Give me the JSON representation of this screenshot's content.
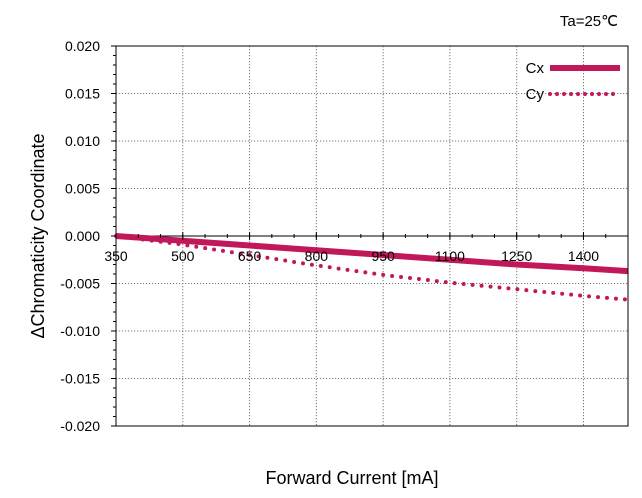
{
  "chart_data": {
    "type": "line",
    "title": "",
    "annotation": "Ta=25℃",
    "xlabel": "Forward Current [mA]",
    "ylabel": "ΔChromaticity Coordinate",
    "xlim": [
      350,
      1500
    ],
    "ylim": [
      -0.02,
      0.02
    ],
    "x_ticks": [
      350,
      500,
      650,
      800,
      950,
      1100,
      1250,
      1400
    ],
    "x_tick_labels": [
      "350",
      "500",
      "650",
      "800",
      "950",
      "1100",
      "1250",
      "1400"
    ],
    "y_ticks": [
      0.02,
      0.015,
      0.01,
      0.005,
      0.0,
      -0.005,
      -0.01,
      -0.015,
      -0.02
    ],
    "y_tick_labels": [
      "0.020",
      "0.015",
      "0.010",
      "0.005",
      "0.000",
      "-0.005",
      "-0.010",
      "-0.015",
      "-0.020"
    ],
    "grid": true,
    "legend_position": "top-right",
    "x": [
      350,
      500,
      650,
      800,
      950,
      1100,
      1250,
      1400,
      1500
    ],
    "series": [
      {
        "name": "Cx",
        "style": "solid",
        "color": "#c0185a",
        "values": [
          0.0,
          -0.0005,
          -0.001,
          -0.0015,
          -0.002,
          -0.0025,
          -0.003,
          -0.0034,
          -0.0037
        ]
      },
      {
        "name": "Cy",
        "style": "dotted",
        "color": "#c0185a",
        "values": [
          0.0,
          -0.0009,
          -0.002,
          -0.0031,
          -0.0041,
          -0.0049,
          -0.0056,
          -0.0063,
          -0.0067
        ]
      }
    ]
  }
}
